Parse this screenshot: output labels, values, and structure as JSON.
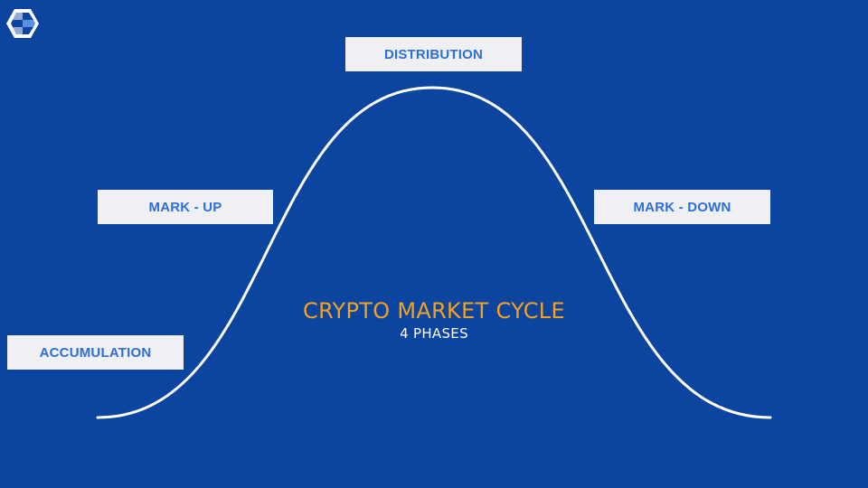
{
  "logo": {
    "icon": "hexagon-logo-icon"
  },
  "title": "CRYPTO MARKET CYCLE",
  "subtitle": "4 PHASES",
  "phases": [
    {
      "label": "ACCUMULATION"
    },
    {
      "label": "MARK - UP"
    },
    {
      "label": "DISTRIBUTION"
    },
    {
      "label": "MARK - DOWN"
    }
  ],
  "colors": {
    "background": "#0c45a0",
    "title": "#f3a21d",
    "subtitle": "#ffffff",
    "label_text": "#2f6ed9",
    "label_box": "#eef0f3",
    "curve": "#ffffff"
  }
}
